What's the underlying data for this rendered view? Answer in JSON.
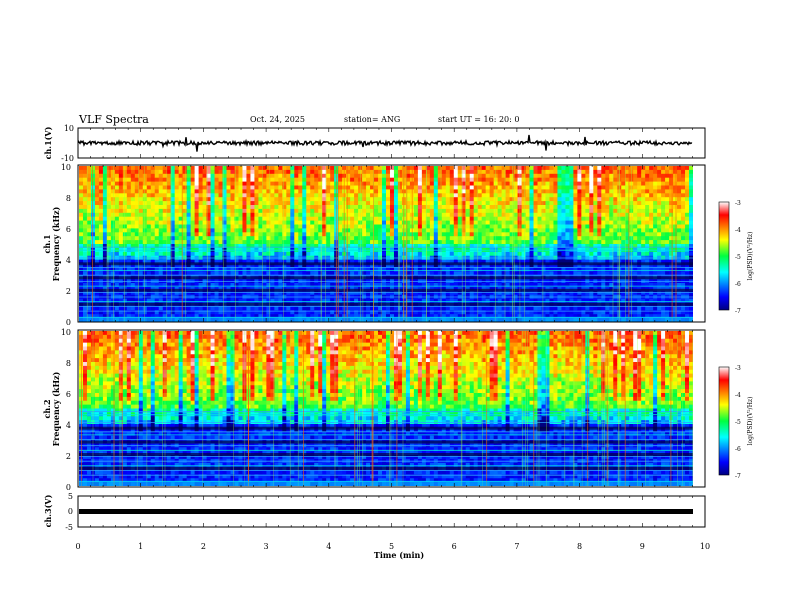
{
  "header": {
    "title": "VLF Spectra",
    "date": "Oct. 24, 2025",
    "station": "station= ANG",
    "start": "start  UT  =   16: 20: 0"
  },
  "chart_data": [
    {
      "id": "ch1_waveform",
      "type": "line",
      "title": "",
      "ylabel": "ch.1(V)",
      "ylim": [
        -10,
        10
      ],
      "yticks": [
        "10",
        "-10"
      ],
      "xlim": [
        0,
        10
      ],
      "baseline": 0,
      "noise_amplitude": 1
    },
    {
      "id": "ch1_spectrogram",
      "type": "heatmap",
      "ylabel_top": "ch.1",
      "ylabel": "Frequency  (kHz)",
      "ylim": [
        0,
        10
      ],
      "yticks": [
        "0",
        "2",
        "4",
        "6",
        "8",
        "10"
      ],
      "xlim": [
        0,
        9.8
      ],
      "colorbar": {
        "label": "log(PSD)(V²/Hz)",
        "range": [
          -7,
          -3
        ],
        "ticks": [
          "-3",
          "-4",
          "-5",
          "-6",
          "-7"
        ]
      },
      "seed": 11
    },
    {
      "id": "ch2_spectrogram",
      "type": "heatmap",
      "ylabel_top": "ch.2",
      "ylabel": "Frequency  (kHz)",
      "ylim": [
        0,
        10
      ],
      "yticks": [
        "0",
        "2",
        "4",
        "6",
        "8",
        "10"
      ],
      "xlim": [
        0,
        9.8
      ],
      "colorbar": {
        "label": "log(PSD)(V²/Hz)",
        "range": [
          -7,
          -3
        ],
        "ticks": [
          "-3",
          "-4",
          "-5",
          "-6",
          "-7"
        ]
      },
      "seed": 29
    },
    {
      "id": "ch3_waveform",
      "type": "line",
      "ylabel": "ch.3(V)",
      "ylim": [
        -5,
        5
      ],
      "yticks": [
        "5",
        "0",
        "-5"
      ],
      "xlim": [
        0,
        10
      ],
      "baseline": -0.3
    }
  ],
  "xaxis": {
    "label": "Time  (min)",
    "ticks": [
      "0",
      "1",
      "2",
      "3",
      "4",
      "5",
      "6",
      "7",
      "8",
      "9",
      "10"
    ],
    "range": [
      0,
      10
    ]
  }
}
